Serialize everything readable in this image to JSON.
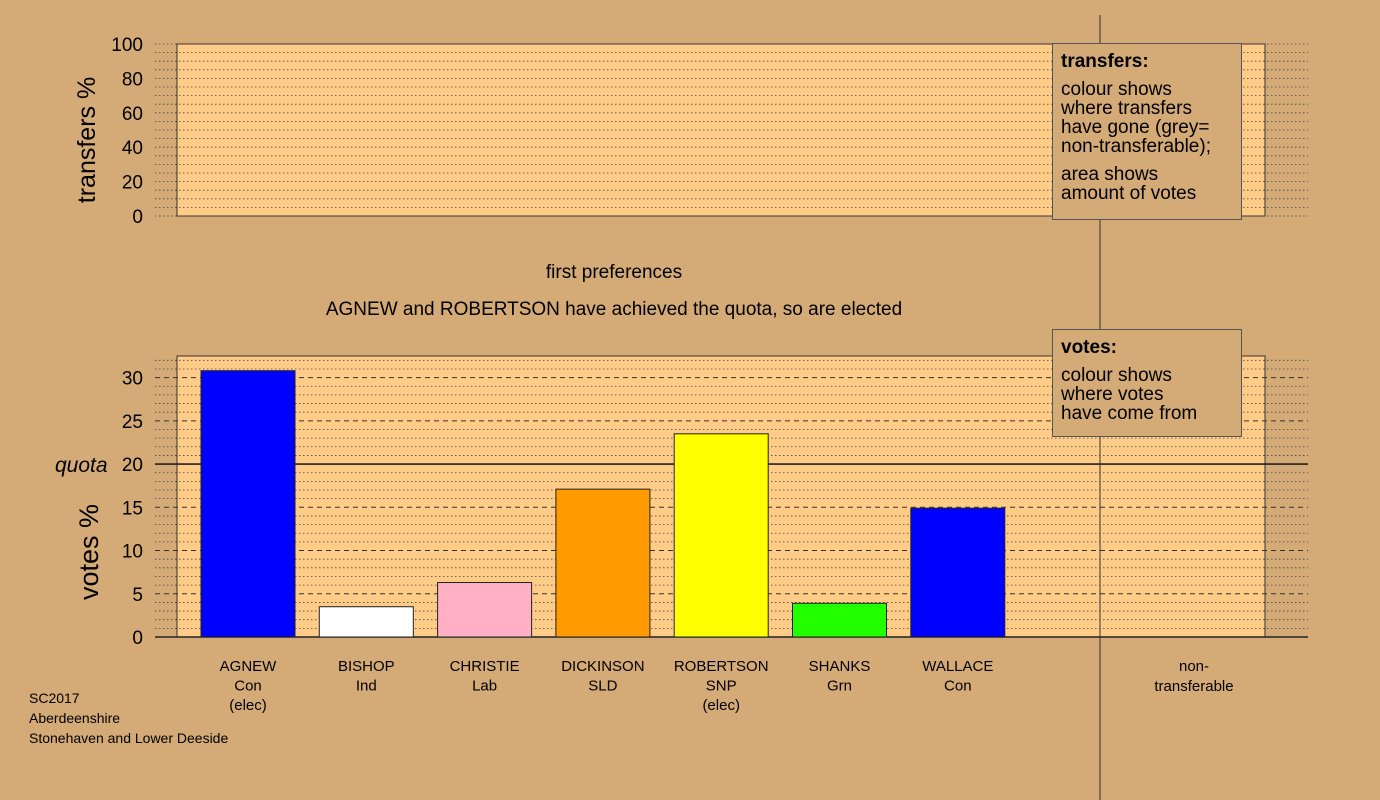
{
  "chart_data": [
    {
      "type": "bar",
      "panel": "transfers",
      "ylabel": "transfers %",
      "ylim": [
        0,
        100
      ],
      "yticks": [
        0,
        20,
        40,
        60,
        80,
        100
      ],
      "series": []
    },
    {
      "type": "bar",
      "panel": "votes",
      "ylabel": "votes %",
      "ylim": [
        0,
        32.5
      ],
      "yticks": [
        0,
        5,
        10,
        15,
        20,
        25,
        30
      ],
      "quota": 20,
      "quota_label": "quota",
      "categories": [
        {
          "name": "AGNEW",
          "party": "Con",
          "note": "(elec)"
        },
        {
          "name": "BISHOP",
          "party": "Ind",
          "note": ""
        },
        {
          "name": "CHRISTIE",
          "party": "Lab",
          "note": ""
        },
        {
          "name": "DICKINSON",
          "party": "SLD",
          "note": ""
        },
        {
          "name": "ROBERTSON",
          "party": "SNP",
          "note": "(elec)"
        },
        {
          "name": "SHANKS",
          "party": "Grn",
          "note": ""
        },
        {
          "name": "WALLACE",
          "party": "Con",
          "note": ""
        }
      ],
      "values": [
        30.8,
        3.5,
        6.3,
        17.1,
        23.5,
        3.9,
        14.9
      ],
      "colors": [
        "#0000ff",
        "#ffffff",
        "#ffb0c4",
        "#ff9a00",
        "#ffff00",
        "#22ff00",
        "#0000ff"
      ],
      "nontransferable_label": [
        "non-",
        "transferable"
      ],
      "nontransferable_value": 0
    }
  ],
  "headings": {
    "stage": "first preferences",
    "message": "AGNEW and ROBERTSON have achieved the quota, so are elected"
  },
  "legend_transfers": {
    "title": "transfers:",
    "lines1": [
      "colour shows",
      "where transfers",
      "have gone (grey=",
      "non-transferable);"
    ],
    "lines2": [
      "area shows",
      "amount of votes"
    ]
  },
  "legend_votes": {
    "title": "votes:",
    "lines": [
      "colour shows",
      "where votes",
      "have come from"
    ]
  },
  "footer": {
    "line1": "SC2017",
    "line2": "Aberdeenshire",
    "line3": "Stonehaven and Lower Deeside"
  },
  "colors": {
    "background": "#d4aa77",
    "panel": "#ffcc88"
  }
}
